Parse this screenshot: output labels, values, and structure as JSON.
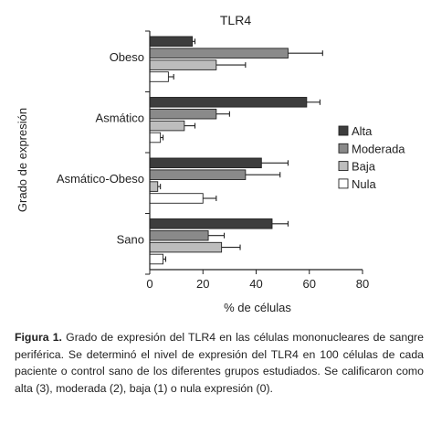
{
  "chart_data": {
    "type": "bar",
    "orientation": "horizontal",
    "title": "TLR4",
    "xlabel": "% de células",
    "ylabel": "Grado de expresión",
    "xlim": [
      0,
      80
    ],
    "xticks": [
      "0",
      "20",
      "40",
      "60",
      "80"
    ],
    "categories": [
      "Obeso",
      "Asmático",
      "Asmático-Obeso",
      "Sano"
    ],
    "series": [
      {
        "name": "Alta",
        "color": "#3d3d3d",
        "values": [
          16,
          59,
          42,
          46
        ],
        "errors": [
          1,
          5,
          10,
          6
        ]
      },
      {
        "name": "Moderada",
        "color": "#8a8a8a",
        "values": [
          52,
          25,
          36,
          22
        ],
        "errors": [
          13,
          5,
          13,
          6
        ]
      },
      {
        "name": "Baja",
        "color": "#bdbdbd",
        "values": [
          25,
          13,
          3,
          27
        ],
        "errors": [
          11,
          4,
          1,
          7
        ]
      },
      {
        "name": "Nula",
        "color": "#ffffff",
        "values": [
          7,
          4,
          20,
          5
        ],
        "errors": [
          2,
          1,
          5,
          1
        ]
      }
    ],
    "legend_position": "right"
  },
  "caption": {
    "label": "Figura 1.",
    "text": "Grado de expresión del TLR4 en las células mononucleares de sangre periférica. Se determinó el nivel de expresión del TLR4 en 100 células de cada paciente o control sano de los diferentes grupos estudiados. Se calificaron como alta (3), moderada (2), baja (1) o nula expresión (0)."
  }
}
